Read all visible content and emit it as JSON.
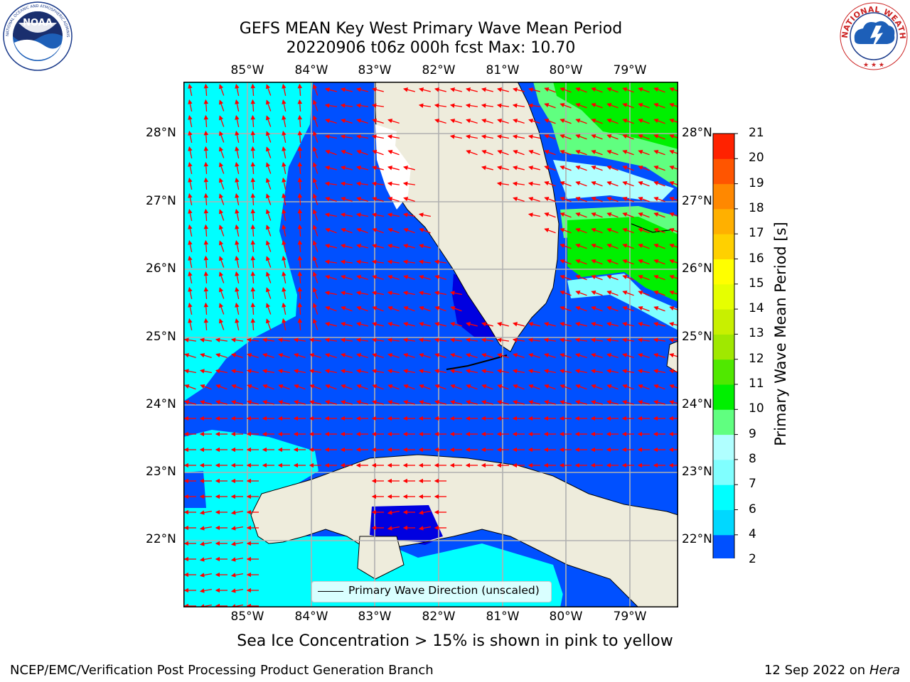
{
  "title_line1": "GEFS MEAN Key West Primary Wave Mean Period",
  "title_line2": "20220906 t06z 000h fcst   Max: 10.70",
  "lon_labels": [
    "85°W",
    "84°W",
    "83°W",
    "82°W",
    "81°W",
    "80°W",
    "79°W"
  ],
  "lat_labels": [
    "28°N",
    "27°N",
    "26°N",
    "25°N",
    "24°N",
    "23°N",
    "22°N"
  ],
  "colorbar": {
    "title": "Primary Wave Mean Period [s]",
    "ticks": [
      "2",
      "4",
      "6",
      "7",
      "8",
      "9",
      "10",
      "11",
      "12",
      "13",
      "14",
      "15",
      "16",
      "17",
      "18",
      "19",
      "20",
      "21"
    ],
    "colors": [
      "#0050ff",
      "#00d8ff",
      "#00ffff",
      "#80ffff",
      "#b0ffff",
      "#60ff80",
      "#00f000",
      "#50e800",
      "#a0e800",
      "#c8f000",
      "#e6ff00",
      "#ffff00",
      "#ffd000",
      "#ffb000",
      "#ff8800",
      "#ff5500",
      "#ff2200"
    ],
    "extend_color": "#0000e0"
  },
  "legend_text": "Primary Wave Direction (unscaled)",
  "caption": "Sea Ice Concentration > 15% is shown in pink to yellow",
  "footer_left": "NCEP/EMC/Verification Post Processing Product Generation Branch",
  "footer_date": "12 Sep 2022 on",
  "footer_host": "Hera",
  "logo_left_text": "NOAA",
  "logo_left_ring": "NATIONAL OCEANIC AND ATMOSPHERIC ADMINISTRATION · U.S. DEPARTMENT OF COMMERCE",
  "logo_right_ring": "NATIONAL WEATHER SERVICE",
  "colors": {
    "land": "#eeecdc",
    "arrow": "#ff0000",
    "grid": "#b0b0b0",
    "coast": "#000000"
  }
}
